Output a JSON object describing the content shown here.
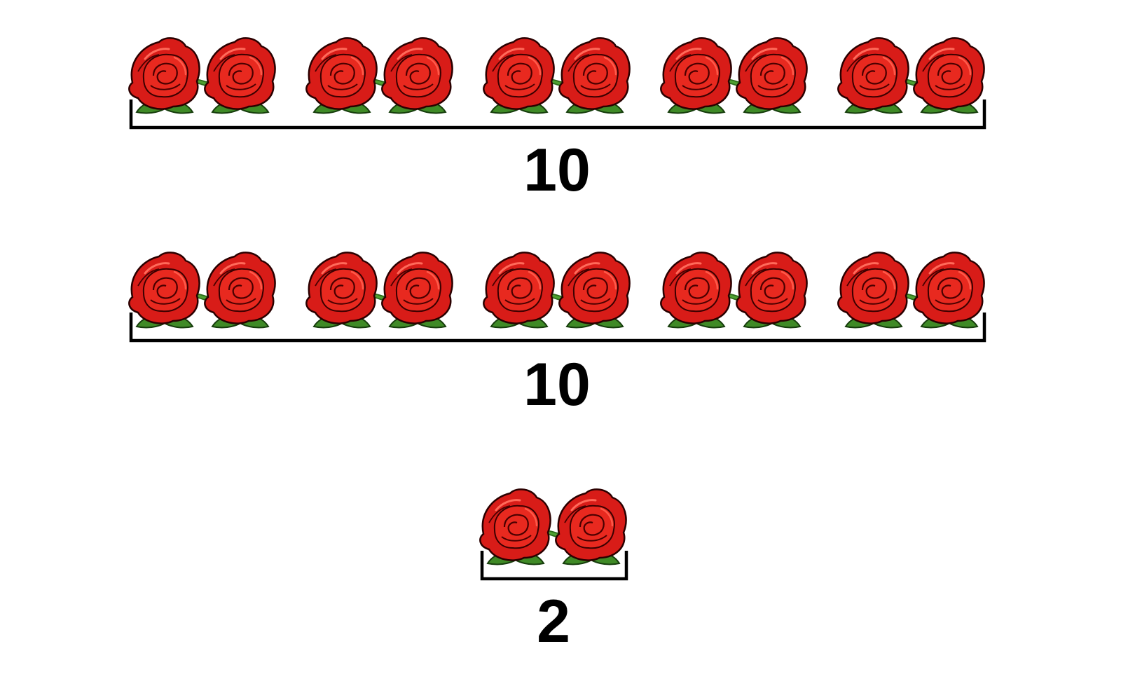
{
  "groups": [
    {
      "label": "10",
      "count": 10
    },
    {
      "label": "10",
      "count": 10
    },
    {
      "label": "2",
      "count": 2
    }
  ],
  "colors": {
    "rose_dark": "#b30d0d",
    "rose": "#e0201b",
    "rose_light": "#f2443a",
    "leaf": "#3f8a26",
    "leaf_dark": "#2b6a1a",
    "bracket": "#000000"
  },
  "icons": {
    "item": "rose-icon"
  }
}
